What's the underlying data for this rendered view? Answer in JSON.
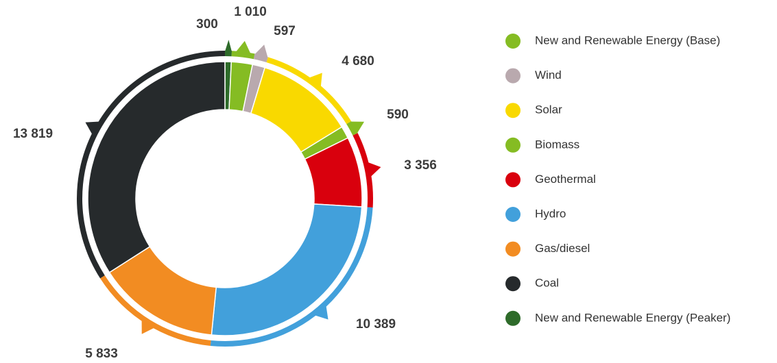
{
  "chart_data": {
    "type": "donut",
    "categories": [
      "New and Renewable Energy (Base)",
      "Wind",
      "Solar",
      "Biomass",
      "Geothermal",
      "Hydro",
      "Gas/diesel",
      "Coal",
      "New and Renewable Energy (Peaker)"
    ],
    "values": [
      1010,
      597,
      4680,
      590,
      3356,
      10389,
      5833,
      13819,
      300
    ],
    "value_labels": [
      "1 010",
      "597",
      "4 680",
      "590",
      "3 356",
      "10 389",
      "5 833",
      "13 819",
      "300"
    ],
    "colors": [
      "#85bc23",
      "#b9a9ae",
      "#f9d900",
      "#85bc23",
      "#d9000d",
      "#42a0db",
      "#f28c22",
      "#262a2c",
      "#2e6b2a"
    ],
    "legend": "right"
  }
}
